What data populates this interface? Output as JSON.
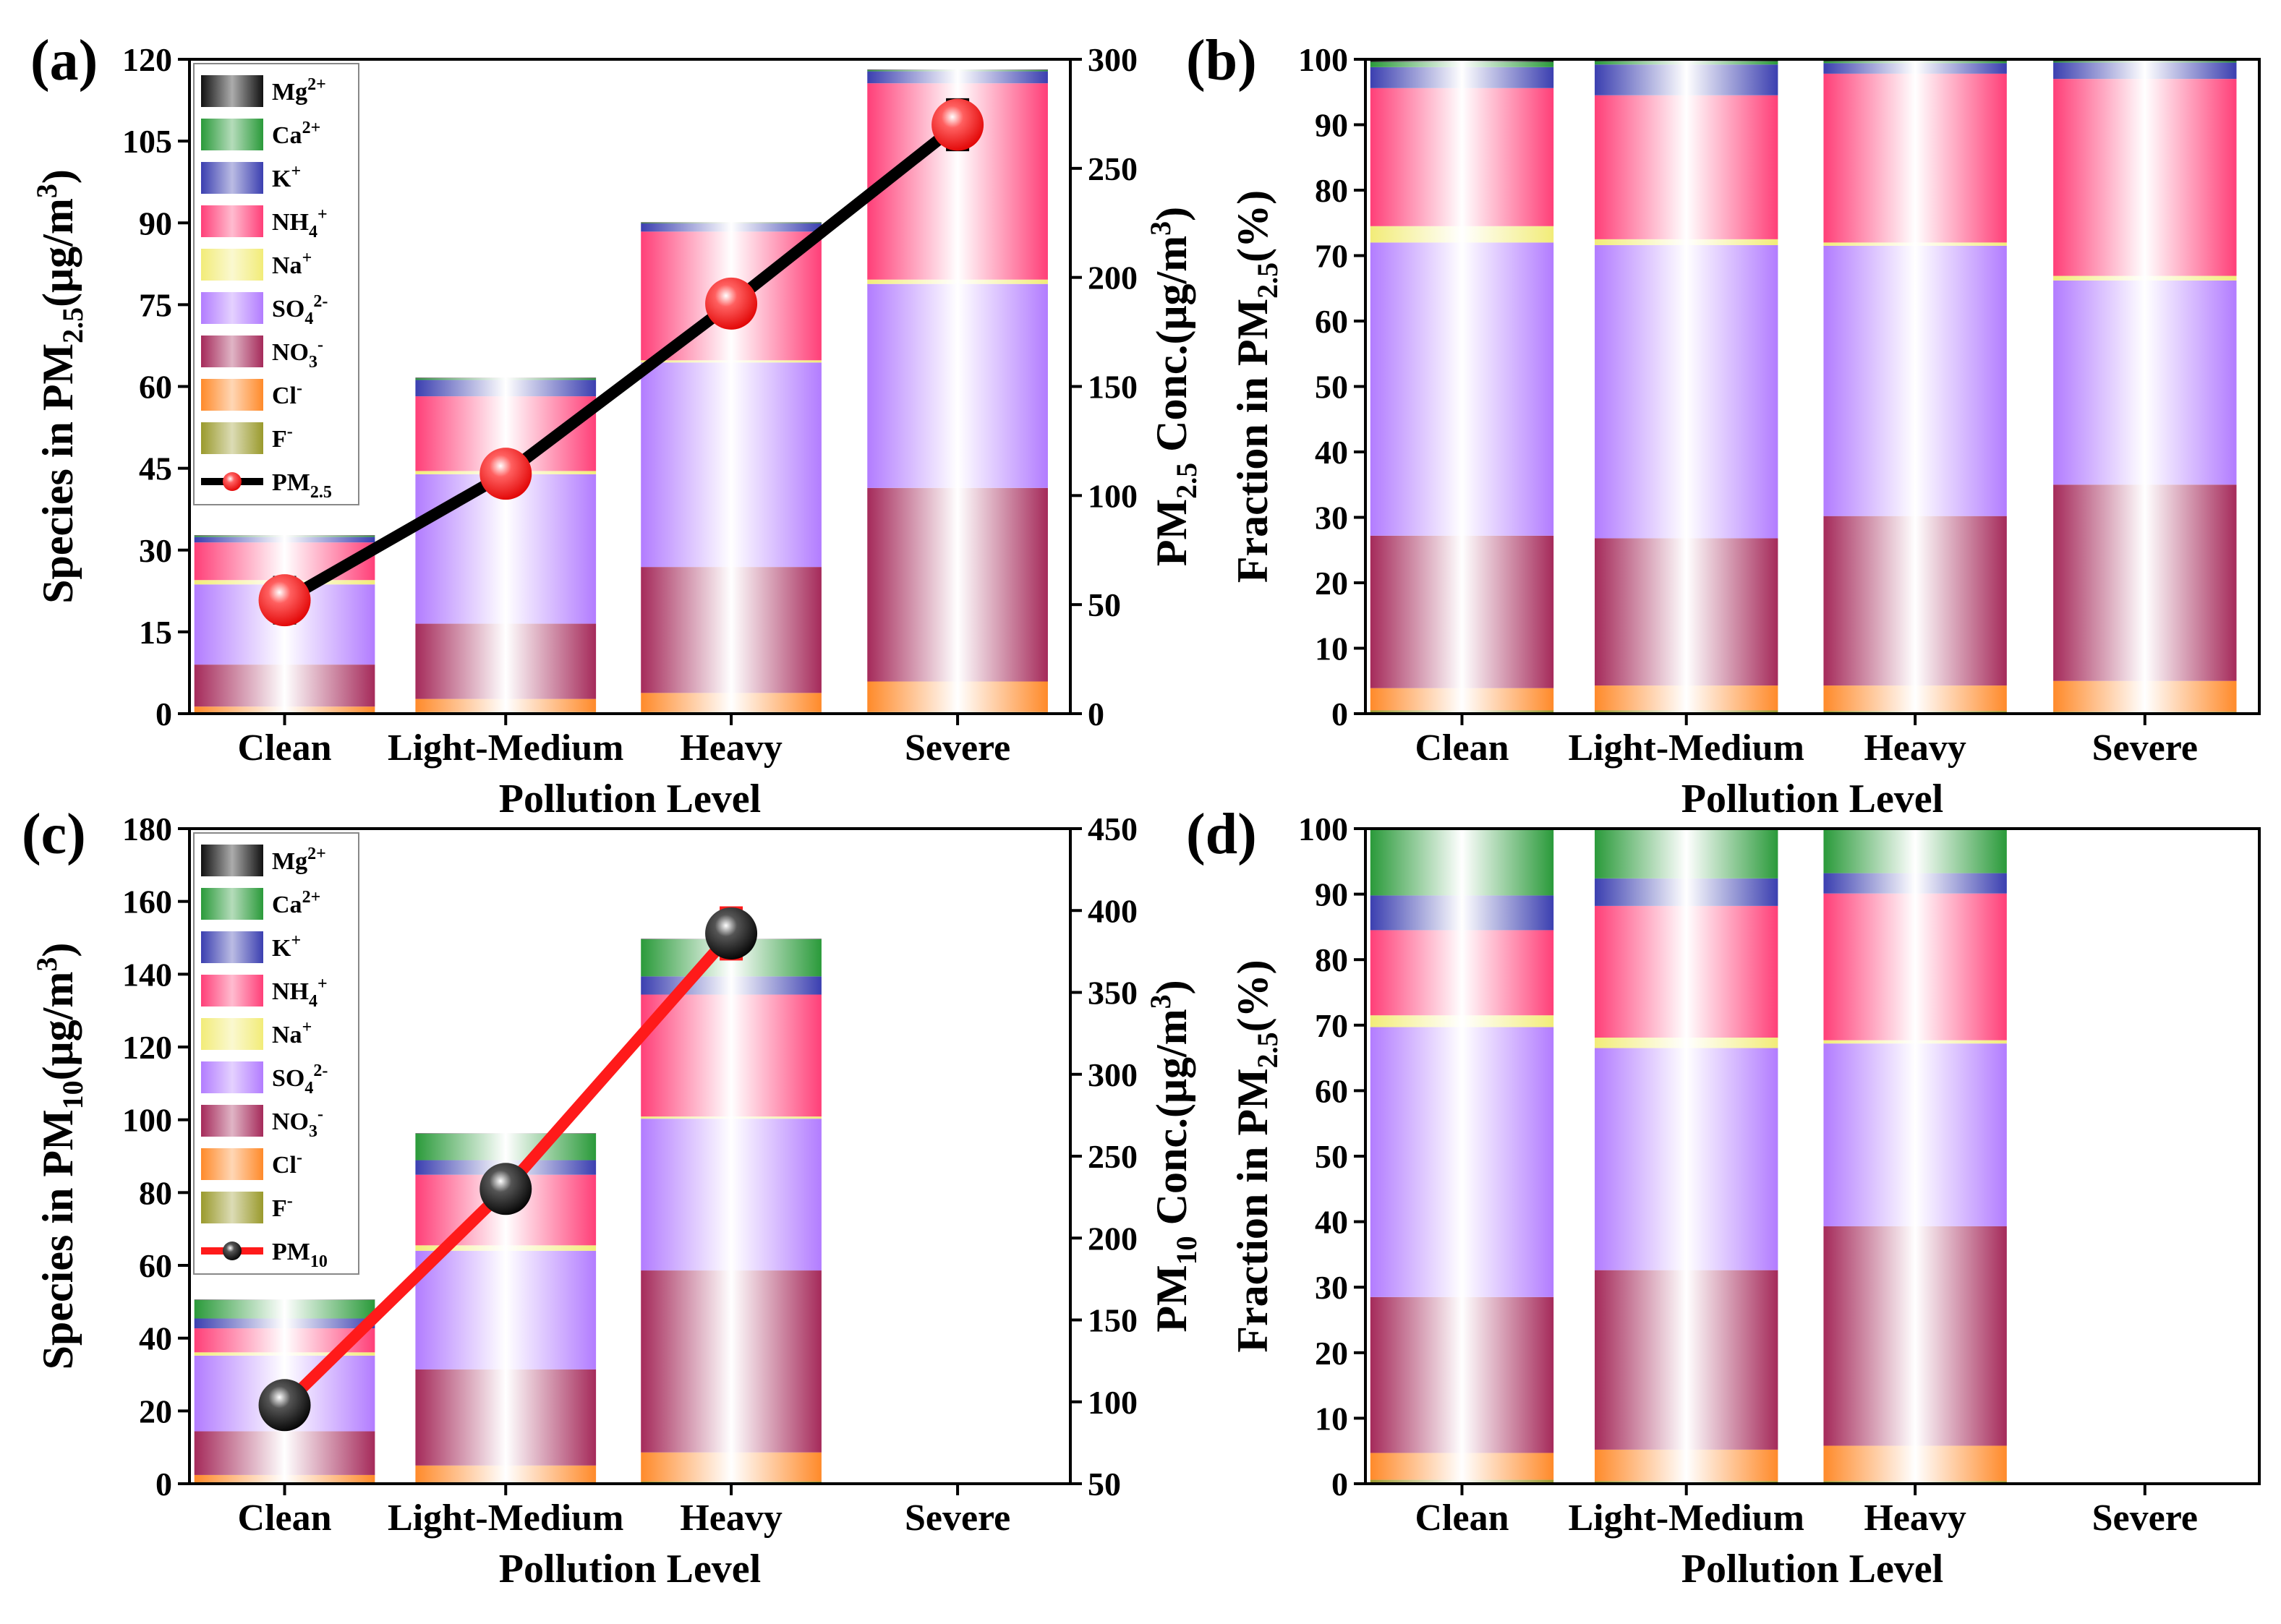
{
  "colors": {
    "F": "#9a9a2c",
    "Cl": "#ff8a2a",
    "NO3": "#a52a5a",
    "SO4": "#b27cff",
    "Na": "#f2ec78",
    "NH4": "#ff3f78",
    "K": "#3b3fb0",
    "Ca": "#2a9a3a",
    "Mg": "#111111",
    "pm25_line": "#000000",
    "pm25_marker": "#ff2020",
    "pm10_line": "#ff1a1a",
    "pm10_marker": "#000000"
  },
  "chart_data": [
    {
      "id": "a",
      "type": "bar",
      "stacked": true,
      "panel_label": "(a)",
      "categories": [
        "Clean",
        "Light-Medium",
        "Heavy",
        "Severe"
      ],
      "xlabel": "Pollution Level",
      "ylabel": {
        "main": "Species in PM",
        "sub": "2.5",
        "mid": "(μg/m",
        "sup": "3",
        "end": ")"
      },
      "ylim": [
        0,
        120
      ],
      "yticks": [
        0,
        15,
        30,
        45,
        60,
        75,
        90,
        105,
        120
      ],
      "y2label": {
        "main": "PM",
        "sub": "2.5",
        "mid": " Conc.(μg/m",
        "sup": "3",
        "end": ")"
      },
      "y2lim": [
        0,
        300
      ],
      "y2ticks": [
        0,
        50,
        100,
        150,
        200,
        250,
        300
      ],
      "series": [
        {
          "key": "F",
          "values": [
            0.2,
            0.3,
            0.3,
            0.3
          ]
        },
        {
          "key": "Cl",
          "values": [
            1.1,
            2.4,
            3.5,
            5.6
          ]
        },
        {
          "key": "NO3",
          "values": [
            7.7,
            13.8,
            23.1,
            35.5
          ]
        },
        {
          "key": "SO4",
          "values": [
            14.7,
            27.4,
            37.5,
            37.4
          ]
        },
        {
          "key": "Na",
          "values": [
            0.8,
            0.6,
            0.4,
            0.8
          ]
        },
        {
          "key": "NH4",
          "values": [
            6.9,
            13.7,
            23.6,
            36.0
          ]
        },
        {
          "key": "K",
          "values": [
            1.0,
            3.0,
            1.5,
            2.2
          ]
        },
        {
          "key": "Ca",
          "values": [
            0.2,
            0.3,
            0.1,
            0.2
          ]
        },
        {
          "key": "Mg",
          "values": [
            0.1,
            0.1,
            0.1,
            0.1
          ]
        }
      ],
      "line": {
        "name": "PM2.5",
        "values": [
          52,
          110,
          188,
          270
        ],
        "errors": [
          10,
          9,
          9,
          11
        ]
      },
      "legend": [
        {
          "key": "Mg",
          "main": "Mg",
          "sup": "2+",
          "sub": ""
        },
        {
          "key": "Ca",
          "main": "Ca",
          "sup": "2+",
          "sub": ""
        },
        {
          "key": "K",
          "main": "K",
          "sup": "+",
          "sub": ""
        },
        {
          "key": "NH4",
          "main": "NH",
          "sub": "4",
          "sup": "+"
        },
        {
          "key": "Na",
          "main": "Na",
          "sup": "+",
          "sub": ""
        },
        {
          "key": "SO4",
          "main": "SO",
          "sub": "4",
          "sup": "2-"
        },
        {
          "key": "NO3",
          "main": "NO",
          "sub": "3",
          "sup": "-"
        },
        {
          "key": "Cl",
          "main": "Cl",
          "sup": "-",
          "sub": ""
        },
        {
          "key": "F",
          "main": "F",
          "sup": "-",
          "sub": ""
        }
      ],
      "line_legend": {
        "main": "PM",
        "sub": "2.5"
      }
    },
    {
      "id": "b",
      "type": "bar",
      "stacked": true,
      "panel_label": "(b)",
      "categories": [
        "Clean",
        "Light-Medium",
        "Heavy",
        "Severe"
      ],
      "xlabel": "Pollution Level",
      "ylabel": {
        "main": "Fraction in PM",
        "sub": "2.5",
        "end": "(%)"
      },
      "ylim": [
        0,
        100
      ],
      "yticks": [
        0,
        10,
        20,
        30,
        40,
        50,
        60,
        70,
        80,
        90,
        100
      ],
      "series": [
        {
          "key": "F",
          "values": [
            0.5,
            0.5,
            0.4,
            0.3
          ]
        },
        {
          "key": "Cl",
          "values": [
            3.4,
            3.8,
            3.9,
            4.7
          ]
        },
        {
          "key": "NO3",
          "values": [
            23.3,
            22.5,
            25.9,
            30.0
          ]
        },
        {
          "key": "SO4",
          "values": [
            44.8,
            44.8,
            41.3,
            31.2
          ]
        },
        {
          "key": "Na",
          "values": [
            2.5,
            0.9,
            0.5,
            0.7
          ]
        },
        {
          "key": "NH4",
          "values": [
            21.1,
            22.0,
            25.8,
            30.1
          ]
        },
        {
          "key": "K",
          "values": [
            3.2,
            4.7,
            1.6,
            2.5
          ]
        },
        {
          "key": "Ca",
          "values": [
            0.8,
            0.5,
            0.3,
            0.2
          ]
        },
        {
          "key": "Mg",
          "values": [
            0.4,
            0.3,
            0.3,
            0.3
          ]
        }
      ]
    },
    {
      "id": "c",
      "type": "bar",
      "stacked": true,
      "panel_label": "(c)",
      "categories": [
        "Clean",
        "Light-Medium",
        "Heavy",
        "Severe"
      ],
      "xlabel": "Pollution Level",
      "ylabel": {
        "main": "Species in PM",
        "sub": "10",
        "mid": "(μg/m",
        "sup": "3",
        "end": ")"
      },
      "ylim": [
        0,
        180
      ],
      "yticks": [
        0,
        20,
        40,
        60,
        80,
        100,
        120,
        140,
        160,
        180
      ],
      "y2label": {
        "main": "PM",
        "sub": "10",
        "mid": " Conc.(μg/m",
        "sup": "3",
        "end": ")"
      },
      "y2lim": [
        50,
        450
      ],
      "y2ticks": [
        50,
        100,
        150,
        200,
        250,
        300,
        350,
        400,
        450
      ],
      "series": [
        {
          "key": "F",
          "values": [
            0.3,
            0.4,
            0.6,
            0
          ]
        },
        {
          "key": "Cl",
          "values": [
            2.1,
            4.6,
            8.0,
            0
          ]
        },
        {
          "key": "NO3",
          "values": [
            12.0,
            26.4,
            50.0,
            0
          ]
        },
        {
          "key": "SO4",
          "values": [
            20.8,
            32.6,
            41.7,
            0
          ]
        },
        {
          "key": "Na",
          "values": [
            0.9,
            1.5,
            0.6,
            0
          ]
        },
        {
          "key": "NH4",
          "values": [
            6.6,
            19.4,
            33.5,
            0
          ]
        },
        {
          "key": "K",
          "values": [
            2.7,
            4.0,
            5.0,
            0
          ]
        },
        {
          "key": "Ca",
          "values": [
            5.1,
            7.3,
            10.2,
            0
          ]
        },
        {
          "key": "Mg",
          "values": [
            0.1,
            0.1,
            0.1,
            0
          ]
        }
      ],
      "line": {
        "name": "PM10",
        "values": [
          98,
          230,
          386
        ],
        "errors": [
          12,
          12,
          15
        ]
      },
      "legend": [
        {
          "key": "Mg",
          "main": "Mg",
          "sup": "2+",
          "sub": ""
        },
        {
          "key": "Ca",
          "main": "Ca",
          "sup": "2+",
          "sub": ""
        },
        {
          "key": "K",
          "main": "K",
          "sup": "+",
          "sub": ""
        },
        {
          "key": "NH4",
          "main": "NH",
          "sub": "4",
          "sup": "+"
        },
        {
          "key": "Na",
          "main": "Na",
          "sup": "+",
          "sub": ""
        },
        {
          "key": "SO4",
          "main": "SO",
          "sub": "4",
          "sup": "2-"
        },
        {
          "key": "NO3",
          "main": "NO",
          "sub": "3",
          "sup": "-"
        },
        {
          "key": "Cl",
          "main": "Cl",
          "sup": "-",
          "sub": ""
        },
        {
          "key": "F",
          "main": "F",
          "sup": "-",
          "sub": ""
        }
      ],
      "line_legend": {
        "main": "PM",
        "sub": "10"
      }
    },
    {
      "id": "d",
      "type": "bar",
      "stacked": true,
      "panel_label": "(d)",
      "categories": [
        "Clean",
        "Light-Medium",
        "Heavy",
        "Severe"
      ],
      "xlabel": "Pollution Level",
      "ylabel": {
        "main": "Fraction in PM",
        "sub": "2.5",
        "end": "(%)"
      },
      "ylim": [
        0,
        100
      ],
      "yticks": [
        0,
        10,
        20,
        30,
        40,
        50,
        60,
        70,
        80,
        90,
        100
      ],
      "series": [
        {
          "key": "F",
          "values": [
            0.6,
            0.4,
            0.4,
            0
          ]
        },
        {
          "key": "Cl",
          "values": [
            4.1,
            4.8,
            5.4,
            0
          ]
        },
        {
          "key": "NO3",
          "values": [
            23.8,
            27.4,
            33.5,
            0
          ]
        },
        {
          "key": "SO4",
          "values": [
            41.2,
            33.9,
            27.9,
            0
          ]
        },
        {
          "key": "Na",
          "values": [
            1.8,
            1.6,
            0.5,
            0
          ]
        },
        {
          "key": "NH4",
          "values": [
            13.0,
            20.1,
            22.4,
            0
          ]
        },
        {
          "key": "K",
          "values": [
            5.3,
            4.2,
            3.1,
            0
          ]
        },
        {
          "key": "Ca",
          "values": [
            10.0,
            7.5,
            6.7,
            0
          ]
        },
        {
          "key": "Mg",
          "values": [
            0.2,
            0.1,
            0.1,
            0
          ]
        }
      ]
    }
  ]
}
